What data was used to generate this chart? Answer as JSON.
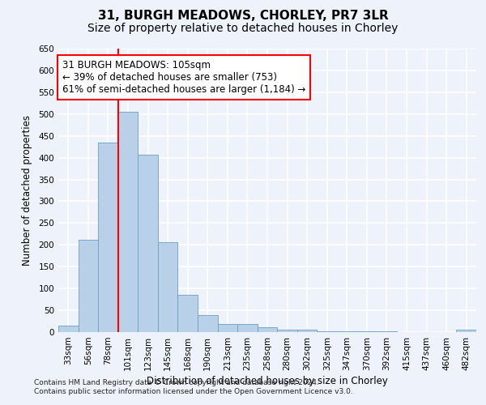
{
  "title1": "31, BURGH MEADOWS, CHORLEY, PR7 3LR",
  "title2": "Size of property relative to detached houses in Chorley",
  "xlabel": "Distribution of detached houses by size in Chorley",
  "ylabel": "Number of detached properties",
  "categories": [
    "33sqm",
    "56sqm",
    "78sqm",
    "101sqm",
    "123sqm",
    "145sqm",
    "168sqm",
    "190sqm",
    "213sqm",
    "235sqm",
    "258sqm",
    "280sqm",
    "302sqm",
    "325sqm",
    "347sqm",
    "370sqm",
    "392sqm",
    "415sqm",
    "437sqm",
    "460sqm",
    "482sqm"
  ],
  "values": [
    15,
    212,
    435,
    505,
    406,
    207,
    85,
    39,
    18,
    18,
    12,
    6,
    5,
    2,
    1,
    1,
    1,
    0,
    0,
    0,
    5
  ],
  "bar_color": "#b8d0e8",
  "bar_edge_color": "#6a9fc0",
  "vline_index": 3,
  "vline_color": "red",
  "annotation_text": "31 BURGH MEADOWS: 105sqm\n← 39% of detached houses are smaller (753)\n61% of semi-detached houses are larger (1,184) →",
  "annotation_box_color": "white",
  "annotation_box_edge": "red",
  "ylim": [
    0,
    650
  ],
  "yticks": [
    0,
    50,
    100,
    150,
    200,
    250,
    300,
    350,
    400,
    450,
    500,
    550,
    600,
    650
  ],
  "footnote": "Contains HM Land Registry data © Crown copyright and database right 2024.\nContains public sector information licensed under the Open Government Licence v3.0.",
  "background_color": "#eef2fa",
  "grid_color": "#ffffff",
  "title_fontsize": 11,
  "subtitle_fontsize": 10,
  "axis_label_fontsize": 8.5,
  "tick_fontsize": 7.5,
  "annotation_fontsize": 8.5,
  "footnote_fontsize": 6.5
}
